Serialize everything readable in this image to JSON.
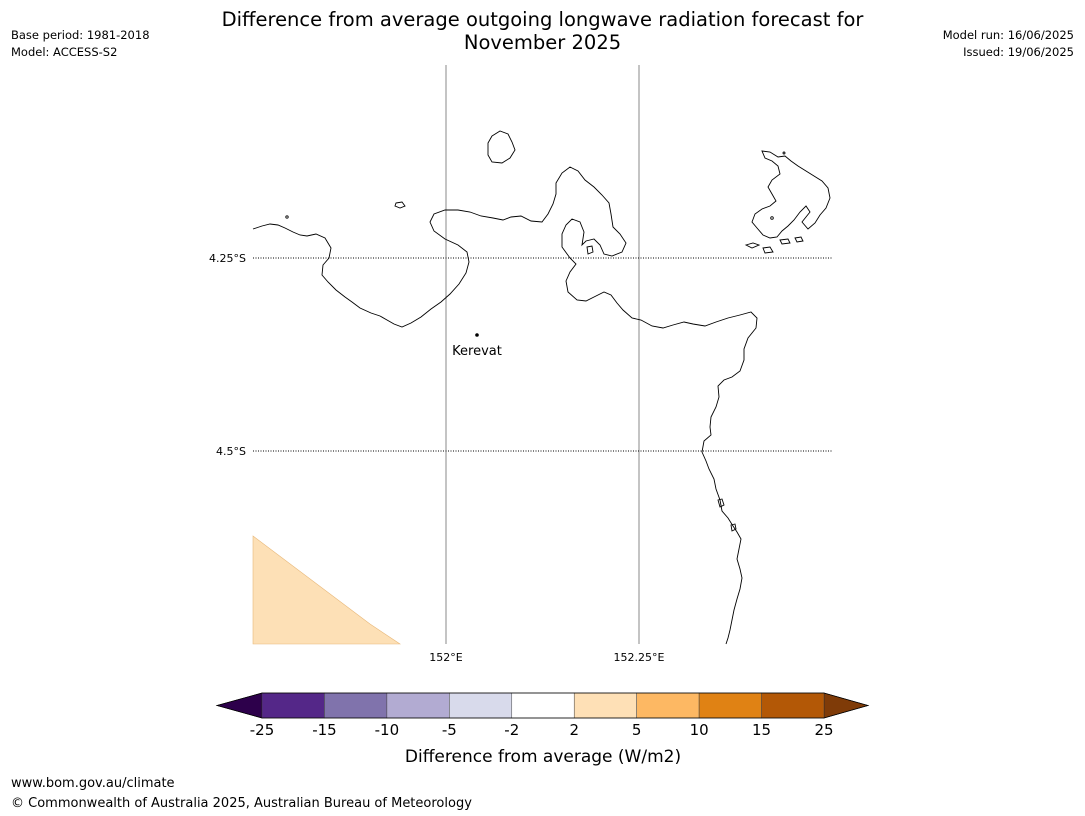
{
  "title_line1": "Difference from average outgoing longwave radiation forecast for",
  "title_line2": "November 2025",
  "base_period": "Base period: 1981-2018",
  "model": "Model: ACCESS-S2",
  "model_run": "Model run: 16/06/2025",
  "issued": "Issued: 19/06/2025",
  "footer_url": "www.bom.gov.au/climate",
  "footer_copyright": "© Commonwealth of Australia 2025, Australian Bureau of Meteorology",
  "map": {
    "lat_labels": [
      "4.25°S",
      "4.5°S"
    ],
    "lon_labels": [
      "152°E",
      "152.25°E"
    ],
    "place": {
      "name": "Kerevat"
    },
    "shaded_category": "2 to 5",
    "shaded_color": "#fde0b6"
  },
  "colorbar": {
    "title": "Difference from average (W/m2)",
    "tick_labels": [
      "-25",
      "-15",
      "-10",
      "-5",
      "-2",
      "2",
      "5",
      "10",
      "15",
      "25"
    ],
    "bins": [
      {
        "range": "<-25",
        "color": "#2d004b"
      },
      {
        "range": "-25 to -15",
        "color": "#542788"
      },
      {
        "range": "-15 to -10",
        "color": "#8073ac"
      },
      {
        "range": "-10 to -5",
        "color": "#b2abd2"
      },
      {
        "range": "-5 to -2",
        "color": "#d8daeb"
      },
      {
        "range": "-2 to 2",
        "color": "#ffffff"
      },
      {
        "range": "2 to 5",
        "color": "#fee0b6"
      },
      {
        "range": "5 to 10",
        "color": "#fdb863"
      },
      {
        "range": "10 to 15",
        "color": "#e08214"
      },
      {
        "range": "15 to 25",
        "color": "#b35806"
      },
      {
        "range": ">25",
        "color": "#7f3b08"
      }
    ]
  }
}
